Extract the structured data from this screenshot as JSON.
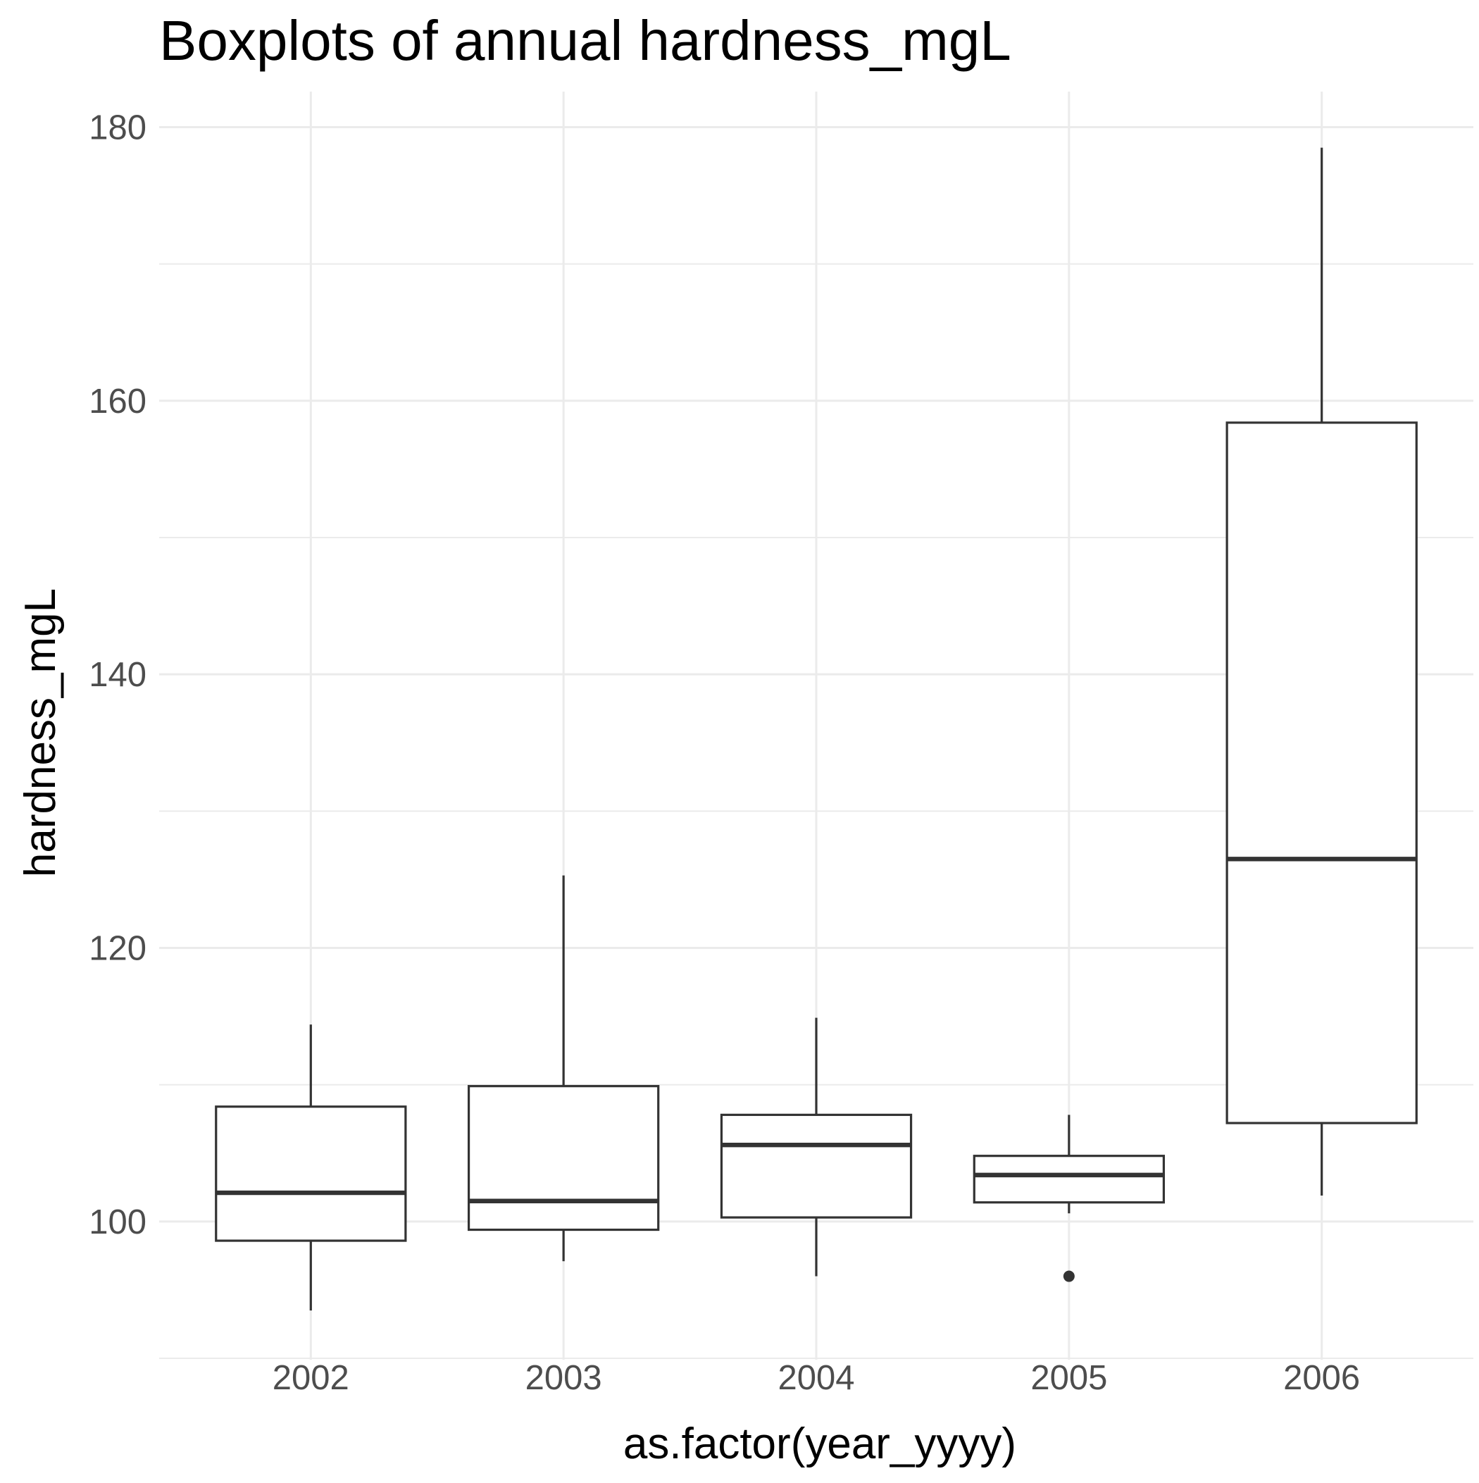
{
  "chart_data": {
    "type": "boxplot",
    "title": "Boxplots of annual hardness_mgL",
    "xlabel": "as.factor(year_yyyy)",
    "ylabel": "hardness_mgL",
    "ylim": [
      89.9,
      182.6
    ],
    "y_major_ticks": [
      100,
      120,
      140,
      160,
      180
    ],
    "y_minor_ticks": [
      90,
      110,
      130,
      150,
      170
    ],
    "grid": true,
    "legend": "none",
    "categories": [
      "2002",
      "2003",
      "2004",
      "2005",
      "2006"
    ],
    "boxes": [
      {
        "category": "2002",
        "min": 93.5,
        "q1": 98.6,
        "median": 102.1,
        "q3": 108.4,
        "max": 114.4,
        "outliers": []
      },
      {
        "category": "2003",
        "min": 97.1,
        "q1": 99.4,
        "median": 101.5,
        "q3": 109.9,
        "max": 125.3,
        "outliers": []
      },
      {
        "category": "2004",
        "min": 96.0,
        "q1": 100.3,
        "median": 105.6,
        "q3": 107.8,
        "max": 114.9,
        "outliers": []
      },
      {
        "category": "2005",
        "min": 100.6,
        "q1": 101.4,
        "median": 103.4,
        "q3": 104.8,
        "max": 107.8,
        "outliers": [
          96.0
        ]
      },
      {
        "category": "2006",
        "min": 101.9,
        "q1": 107.2,
        "median": 126.5,
        "q3": 158.4,
        "max": 178.5,
        "outliers": []
      }
    ],
    "colors": {
      "box_stroke": "#333333",
      "box_fill": "#ffffff",
      "grid": "#ebebeb",
      "tick_text": "#4d4d4d",
      "title_text": "#000000"
    }
  }
}
